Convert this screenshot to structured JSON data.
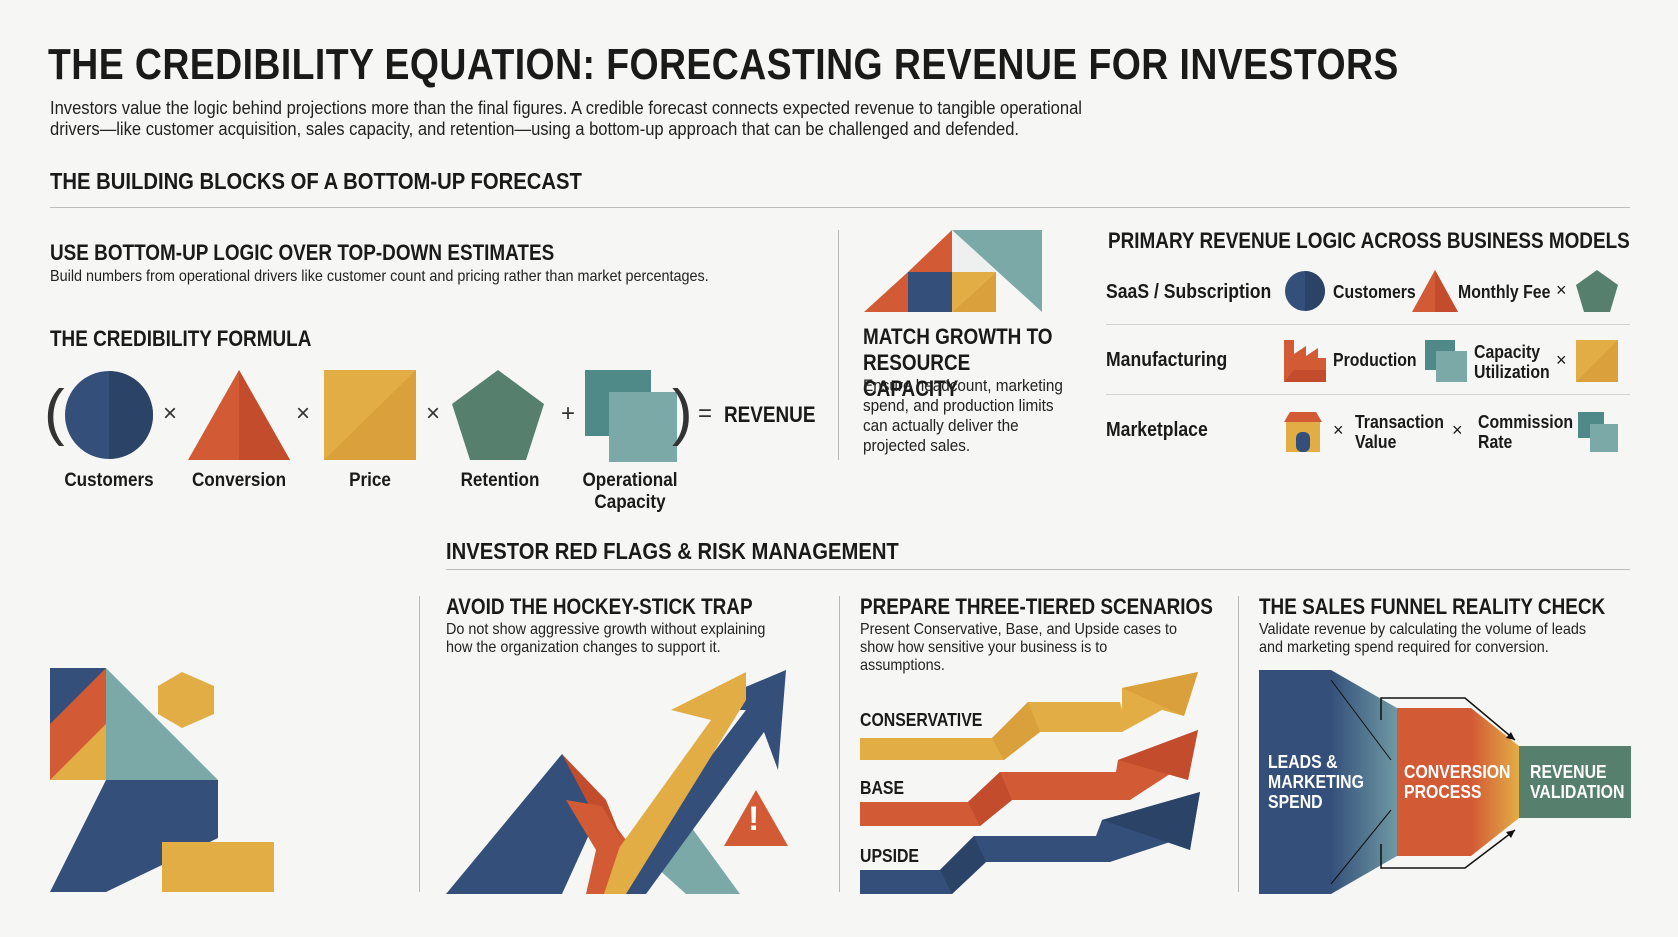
{
  "header": {
    "title": "THE CREDIBILITY EQUATION: FORECASTING REVENUE FOR INVESTORS",
    "subtitle": "Investors value the logic behind projections more than the final figures. A credible forecast connects expected revenue to tangible operational drivers—like customer acquisition, sales capacity, and retention—using a bottom-up approach that can be challenged and defended."
  },
  "building_blocks": {
    "section_title": "THE BUILDING BLOCKS OF A BOTTOM-UP FORECAST",
    "bottom_up": {
      "title": "USE BOTTOM-UP LOGIC OVER TOP-DOWN ESTIMATES",
      "text": "Build numbers from operational drivers like customer count and pricing rather than market percentages."
    },
    "formula": {
      "title": "THE CREDIBILITY FORMULA",
      "open_paren": "(",
      "close_paren": ")",
      "ops": [
        "×",
        "×",
        "×",
        "+"
      ],
      "equals": "=",
      "result": "REVENUE",
      "terms": [
        "Customers",
        "Conversion",
        "Price",
        "Retention",
        "Operational Capacity"
      ]
    },
    "match_growth": {
      "title": "MATCH GROWTH TO RESOURCE CAPACITY",
      "text": "Ensure headcount, marketing spend, and production limits can actually deliver the projected sales."
    },
    "revenue_logic": {
      "title": "PRIMARY REVENUE LOGIC ACROSS BUSINESS MODELS",
      "models": [
        {
          "name": "SaaS / Subscription",
          "factor1": "Customers",
          "factor2": "Monthly Fee",
          "op": "×"
        },
        {
          "name": "Manufacturing",
          "factor1": "Production",
          "factor2": "Capacity Utilization",
          "op": "×"
        },
        {
          "name": "Marketplace",
          "factor1": "Transaction Value",
          "factor2": "Commission Rate",
          "op": "×"
        }
      ]
    }
  },
  "red_flags": {
    "section_title": "INVESTOR RED FLAGS & RISK MANAGEMENT",
    "hockey": {
      "title": "AVOID THE HOCKEY-STICK TRAP",
      "text": "Do not show aggressive growth without explaining how the organization changes to support it.",
      "warning_glyph": "!"
    },
    "scenarios": {
      "title": "PREPARE THREE-TIERED SCENARIOS",
      "text": "Present Conservative, Base, and Upside cases to show how sensitive your business is to assumptions.",
      "labels": [
        "CONSERVATIVE",
        "BASE",
        "UPSIDE"
      ]
    },
    "funnel": {
      "title": "THE SALES FUNNEL REALITY CHECK",
      "text": "Validate revenue by calculating the volume of leads and marketing spend required for conversion.",
      "stages": [
        "LEADS & MARKETING SPEND",
        "CONVERSION PROCESS",
        "REVENUE VALIDATION"
      ]
    }
  },
  "colors": {
    "navy": "#34507a",
    "orange": "#d25a35",
    "gold": "#e3ad45",
    "teal": "#7aa9a8",
    "green": "#56806d"
  }
}
